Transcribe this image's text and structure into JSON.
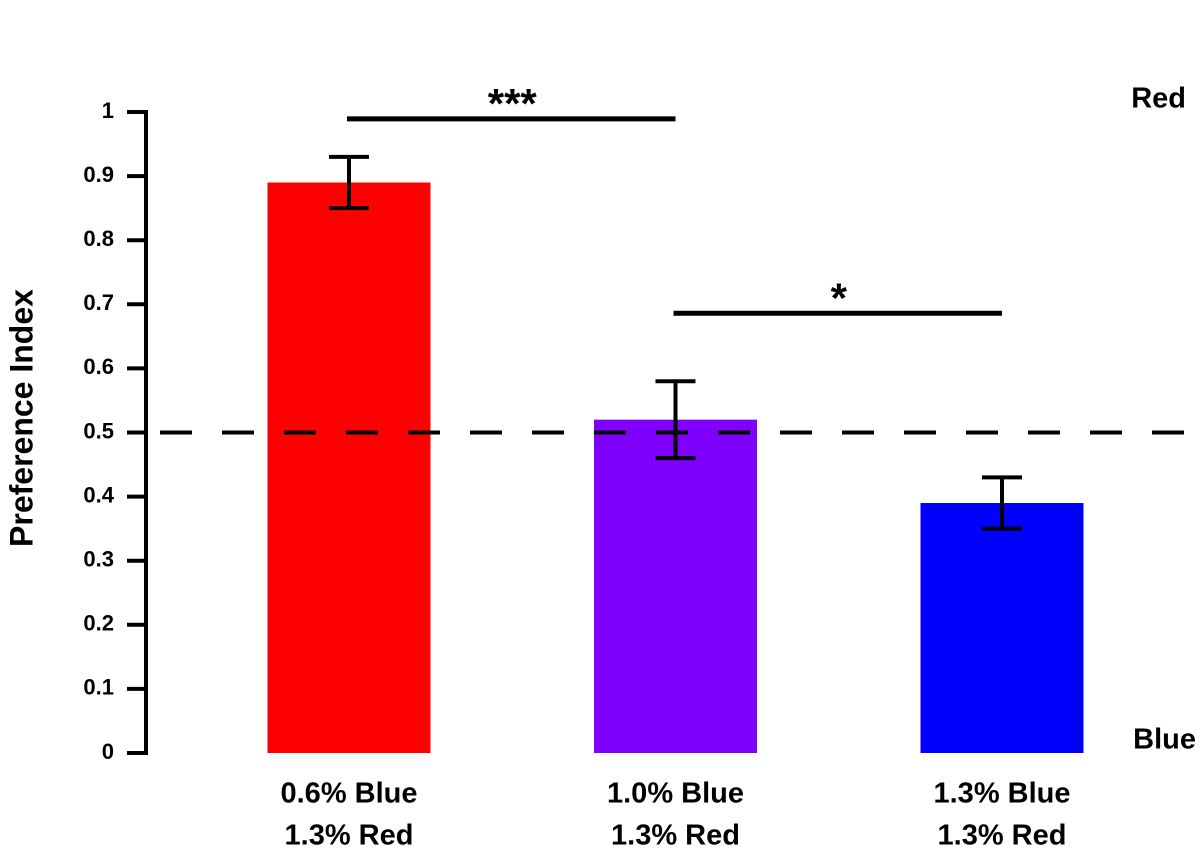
{
  "chart_data": {
    "type": "bar",
    "y_label": "Preference Index",
    "categories": [
      [
        "0.6% Blue",
        "1.3% Red"
      ],
      [
        "1.0% Blue",
        "1.3% Red"
      ],
      [
        "1.3% Blue",
        "1.3% Red"
      ]
    ],
    "values": [
      0.89,
      0.52,
      0.39
    ],
    "errors": [
      0.04,
      0.06,
      0.04
    ],
    "colors": [
      "#ff0000",
      "#7f00ff",
      "#0000ff"
    ],
    "ylim": [
      0,
      1
    ],
    "yticks": [
      0,
      0.1,
      0.2,
      0.3,
      0.4,
      0.5,
      0.6,
      0.7,
      0.8,
      0.9,
      1
    ],
    "reference_line": 0.5,
    "top_label": "Red",
    "bottom_label": "Blue",
    "significance": [
      {
        "from": 0,
        "to": 1,
        "label": "***"
      },
      {
        "from": 1,
        "to": 2,
        "label": "*"
      }
    ]
  }
}
